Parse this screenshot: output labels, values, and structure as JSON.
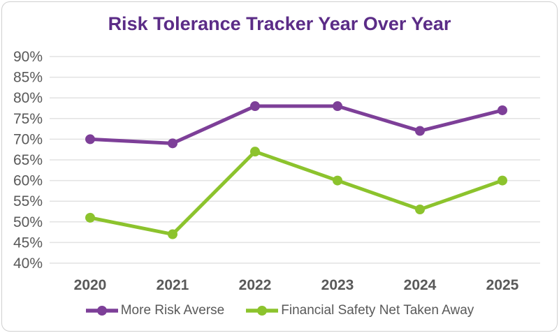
{
  "title": {
    "text": "Risk Tolerance Tracker Year Over Year",
    "color": "#5B2C87"
  },
  "chart_data": {
    "type": "line",
    "title": "Risk Tolerance Tracker Year Over Year",
    "categories": [
      "2020",
      "2021",
      "2022",
      "2023",
      "2024",
      "2025"
    ],
    "series": [
      {
        "name": "More Risk Averse",
        "color": "#7D3F98",
        "values": [
          70,
          69,
          78,
          78,
          72,
          77
        ]
      },
      {
        "name": "Financial Safety Net Taken Away",
        "color": "#8CC32D",
        "values": [
          51,
          47,
          67,
          60,
          53,
          60
        ]
      }
    ],
    "y_axis": {
      "min": 40,
      "max": 90,
      "step": 5,
      "unit": "%",
      "tick_labels": [
        "90%",
        "85%",
        "80%",
        "75%",
        "70%",
        "65%",
        "60%",
        "55%",
        "50%",
        "45%",
        "40%"
      ]
    },
    "x_axis": {
      "tick_labels": [
        "2020",
        "2021",
        "2022",
        "2023",
        "2024",
        "2025"
      ]
    },
    "grid": true,
    "legend_position": "bottom",
    "axis_label_color": "#595959",
    "gridline_color": "#E2E2E2"
  }
}
